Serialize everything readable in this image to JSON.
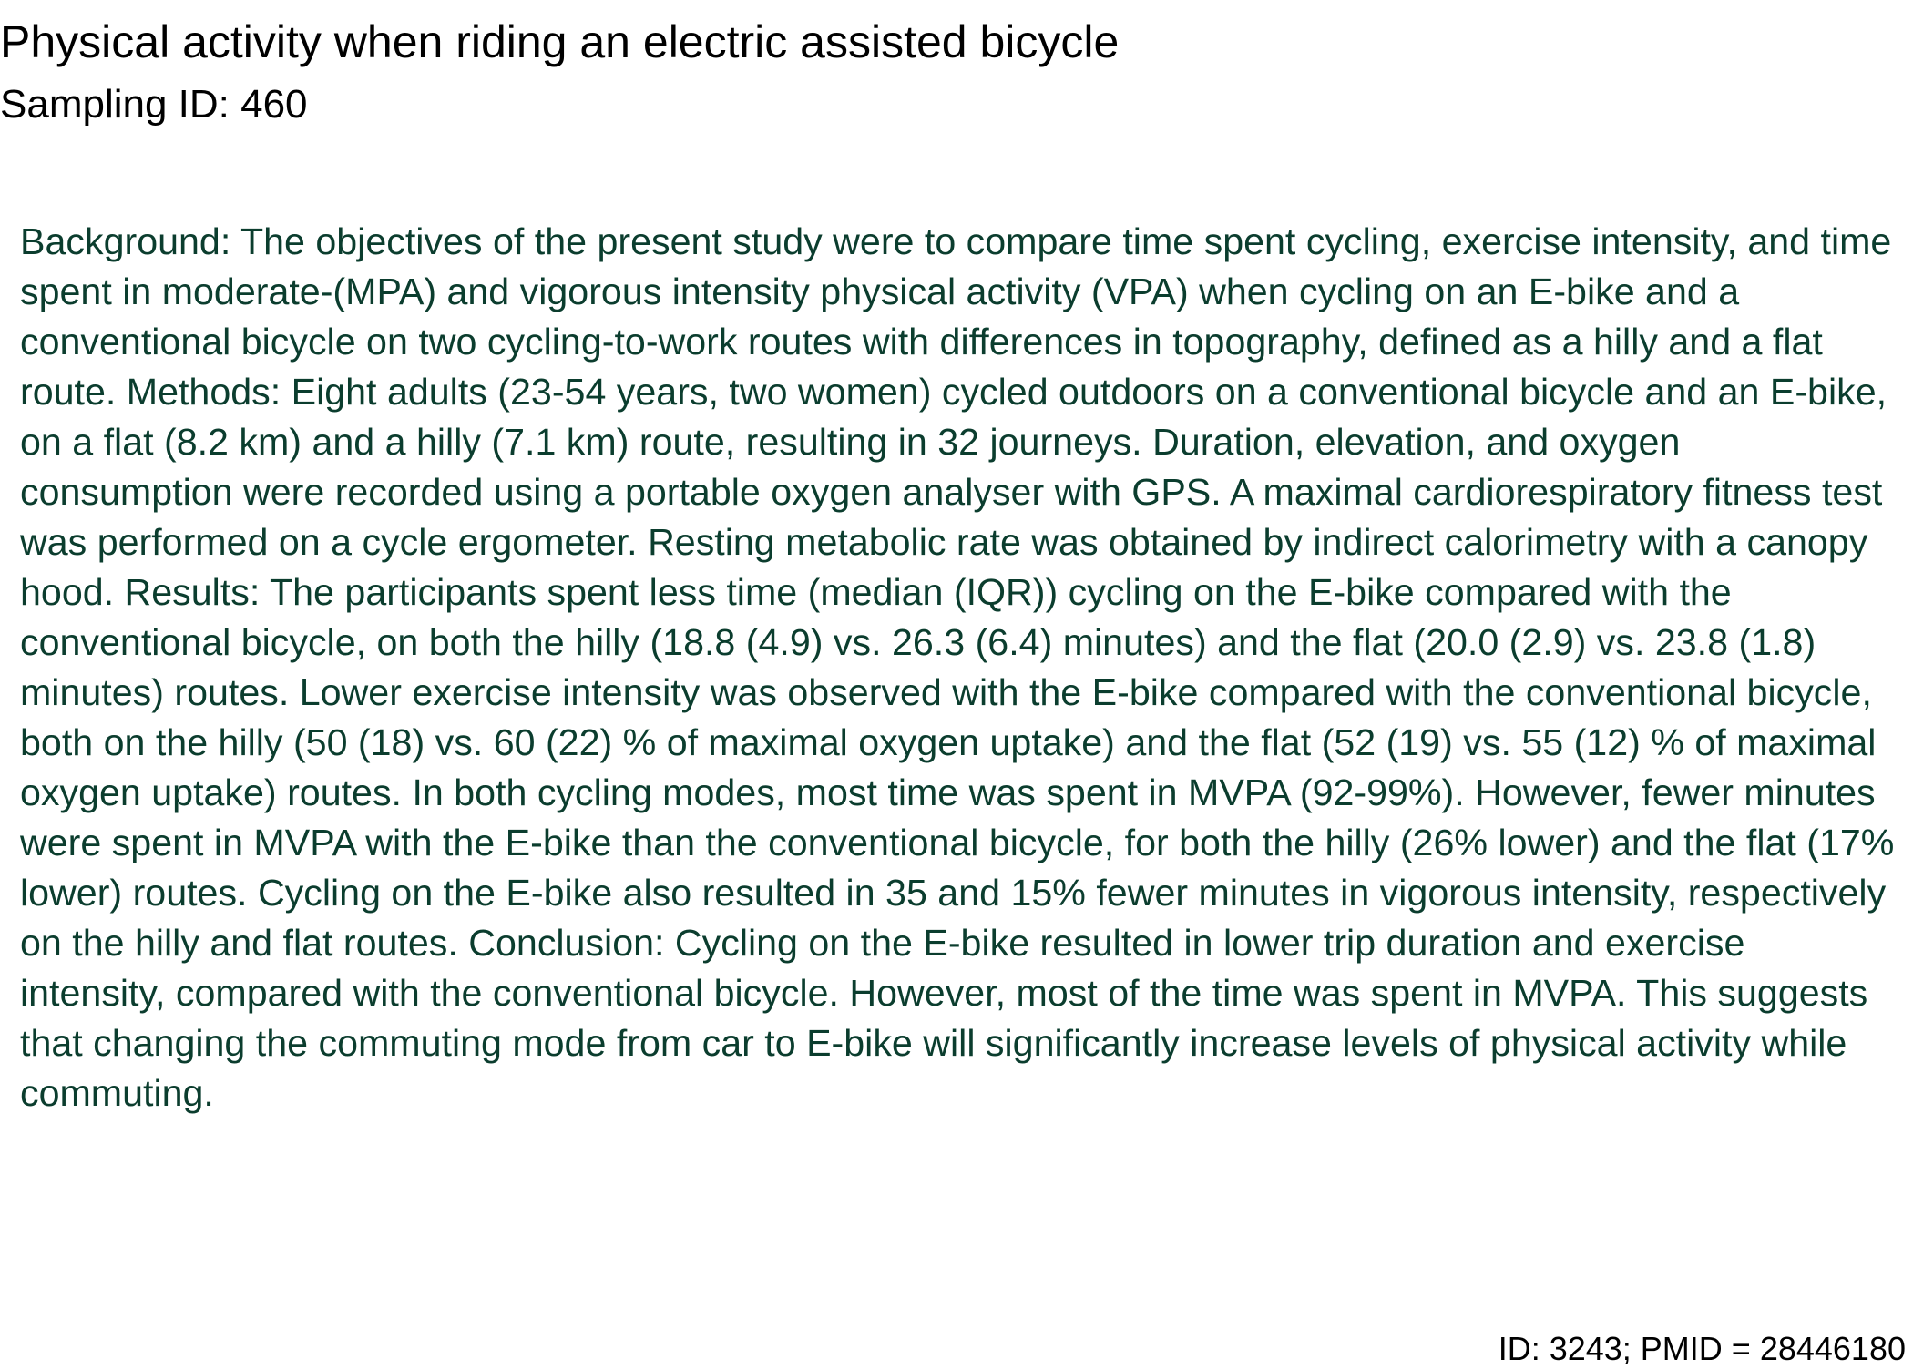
{
  "title": "Physical activity when riding an electric assisted bicycle",
  "subtitle": "Sampling ID: 460",
  "abstract": "Background: The objectives of the present study were to compare time spent cycling, exercise intensity, and time spent in moderate-(MPA) and vigorous intensity physical activity (VPA) when cycling on an E-bike and a conventional bicycle on two cycling-to-work routes with differences in topography, defined as a hilly and a flat route. Methods: Eight adults (23-54 years, two women) cycled outdoors on a conventional bicycle and an E-bike, on a flat (8.2 km) and a hilly (7.1 km) route, resulting in 32 journeys. Duration, elevation, and oxygen consumption were recorded using a portable oxygen analyser with GPS. A maximal cardiorespiratory fitness test was performed on a cycle ergometer. Resting metabolic rate was obtained by indirect calorimetry with a canopy hood. Results: The participants spent less time (median (IQR)) cycling on the E-bike compared with the conventional bicycle, on both the hilly (18.8 (4.9) vs. 26.3 (6.4) minutes) and the flat (20.0 (2.9) vs. 23.8 (1.8) minutes) routes. Lower exercise intensity was observed with the E-bike compared with the conventional bicycle, both on the hilly (50 (18) vs. 60 (22) % of maximal oxygen uptake) and the flat (52 (19) vs. 55 (12) % of maximal oxygen uptake) routes. In both cycling modes, most time was spent in MVPA (92-99%). However, fewer minutes were spent in MVPA with the E-bike than the conventional bicycle, for both the hilly (26% lower) and the flat (17% lower) routes. Cycling on the E-bike also resulted in 35 and 15% fewer minutes in vigorous intensity, respectively on the hilly and flat routes. Conclusion: Cycling on the E-bike resulted in lower trip duration and exercise intensity, compared with the conventional bicycle. However, most of the time was spent in MVPA. This suggests that changing the commuting mode from car to E-bike will significantly increase levels of physical activity while commuting.",
  "footer": "ID: 3243; PMID = 28446180",
  "colors": {
    "title_text": "#000000",
    "abstract_text": "#0b3d2e",
    "background": "#ffffff"
  }
}
